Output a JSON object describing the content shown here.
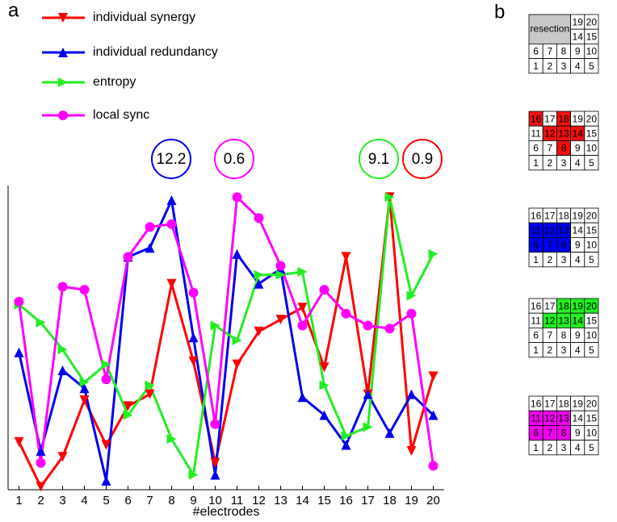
{
  "chart_data": {
    "type": "line",
    "panel_label": "a",
    "xlabel": "#electrodes",
    "x": [
      1,
      2,
      3,
      4,
      5,
      6,
      7,
      8,
      9,
      10,
      11,
      12,
      13,
      14,
      15,
      16,
      17,
      18,
      19,
      20
    ],
    "xlim": [
      0.5,
      20.5
    ],
    "ylim": [
      0,
      100
    ],
    "xticks": [
      1,
      2,
      3,
      4,
      5,
      6,
      7,
      8,
      9,
      10,
      11,
      12,
      13,
      14,
      15,
      16,
      17,
      18,
      19,
      20
    ],
    "series": [
      {
        "name": "individual synergy",
        "color": "#ff0000",
        "marker": "triangle-down",
        "values": [
          16,
          1,
          11,
          30,
          15,
          28,
          32,
          69,
          43,
          9,
          42,
          53,
          57,
          61,
          41,
          78,
          32,
          98,
          13,
          38
        ]
      },
      {
        "name": "individual redundancy",
        "color": "#0000ee",
        "marker": "triangle-up",
        "values": [
          46,
          13,
          40,
          34,
          3,
          78,
          81,
          97,
          51,
          5,
          79,
          69,
          74,
          31,
          25,
          15,
          32,
          19,
          32,
          25
        ]
      },
      {
        "name": "entropy",
        "color": "#22ee22",
        "marker": "triangle-right",
        "values": [
          62,
          56,
          47,
          36,
          42,
          25,
          35,
          17,
          5,
          55,
          50,
          72,
          72,
          73,
          35,
          18,
          21,
          98,
          65,
          79
        ]
      },
      {
        "name": "local sync",
        "color": "#ff00ff",
        "marker": "circle",
        "values": [
          63,
          9,
          68,
          67,
          37,
          78,
          88,
          89,
          66,
          22,
          98,
          91,
          75,
          55,
          67,
          59,
          55,
          54,
          59,
          8
        ]
      }
    ],
    "annotations": [
      {
        "text": "12.2",
        "color": "#0000ee"
      },
      {
        "text": "0.6",
        "color": "#ff00ff"
      },
      {
        "text": "9.1",
        "color": "#22ee22"
      },
      {
        "text": "0.9",
        "color": "#ff0000"
      }
    ]
  },
  "panel_b": {
    "label": "b",
    "rows": [
      [
        16,
        17,
        18,
        19,
        20
      ],
      [
        11,
        12,
        13,
        14,
        15
      ],
      [
        6,
        7,
        8,
        9,
        10
      ],
      [
        1,
        2,
        3,
        4,
        5
      ]
    ],
    "resection_label": "resection",
    "resection_color": "#c8c8c8",
    "resection": [
      16,
      17,
      18,
      11,
      12,
      13
    ],
    "maps": [
      {
        "color": "#ee1111",
        "electrodes": [
          16,
          18,
          12,
          13,
          14,
          8
        ]
      },
      {
        "color": "#0000ee",
        "electrodes": [
          11,
          12,
          13,
          6,
          7,
          8
        ]
      },
      {
        "color": "#22ee22",
        "electrodes": [
          18,
          19,
          20,
          12,
          13,
          14
        ]
      },
      {
        "color": "#ee00ee",
        "electrodes": [
          11,
          12,
          13,
          6,
          7,
          8
        ]
      }
    ]
  }
}
